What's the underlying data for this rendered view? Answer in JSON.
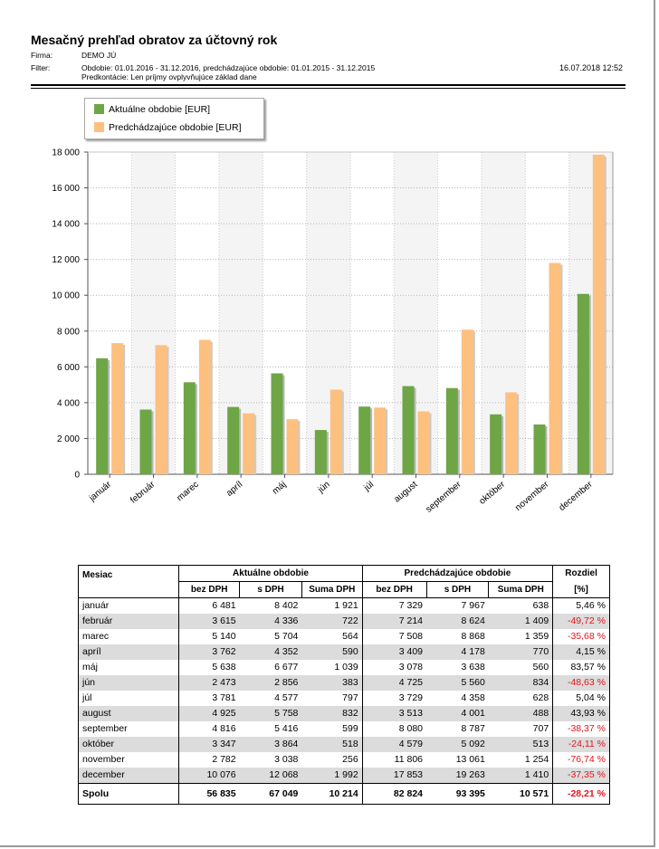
{
  "header": {
    "title": "Mesačný prehľad obratov za účtovný rok",
    "firma_label": "Firma:",
    "firma_value": "DEMO JÚ",
    "filter_label": "Filter:",
    "filter_line1": "Obdobie: 01.01.2016 - 31.12.2016, predchádzajúce obdobie: 01.01.2015 - 31.12.2015",
    "filter_line2": "Predkontácie:  Len príjmy ovplyvňujúce základ dane",
    "timestamp": "16.07.2018 12:52"
  },
  "legend": {
    "current": "Aktuálne obdobie [EUR]",
    "previous": "Predchádzajúce obdobie [EUR]"
  },
  "colors": {
    "current": "#6ea545",
    "previous": "#fdc07f",
    "negative": "#e8131b",
    "shade": "#dcdcdc"
  },
  "chart_data": {
    "type": "bar",
    "categories": [
      "január",
      "február",
      "marec",
      "apríl",
      "máj",
      "jún",
      "júl",
      "august",
      "september",
      "október",
      "november",
      "december"
    ],
    "series": [
      {
        "name": "Aktuálne obdobie [EUR]",
        "values": [
          6481,
          3615,
          5140,
          3762,
          5638,
          2473,
          3781,
          4925,
          4816,
          3347,
          2782,
          10076
        ]
      },
      {
        "name": "Predchádzajúce obdobie [EUR]",
        "values": [
          7329,
          7214,
          7508,
          3409,
          3078,
          4725,
          3729,
          3513,
          8080,
          4579,
          11806,
          17853
        ]
      }
    ],
    "yticks": [
      "0",
      "2 000",
      "4 000",
      "6 000",
      "8 000",
      "10 000",
      "12 000",
      "14 000",
      "16 000",
      "18 000"
    ],
    "ylim": [
      0,
      18000
    ],
    "grid": true,
    "legend_position": "top-left"
  },
  "table": {
    "head": {
      "month": "Mesiac",
      "current": "Aktuálne obdobie",
      "previous": "Predchádzajúce obdobie",
      "diff": "Rozdiel",
      "bez_dph": "bez DPH",
      "s_dph": "s DPH",
      "suma_dph": "Suma DPH",
      "pct": "[%]"
    },
    "rows": [
      {
        "month": "január",
        "c_bez": "6 481",
        "c_s": "8 402",
        "c_suma": "1 921",
        "p_bez": "7 329",
        "p_s": "7 967",
        "p_suma": "638",
        "diff": "5,46 %",
        "neg": false
      },
      {
        "month": "február",
        "c_bez": "3 615",
        "c_s": "4 336",
        "c_suma": "722",
        "p_bez": "7 214",
        "p_s": "8 624",
        "p_suma": "1 409",
        "diff": "-49,72 %",
        "neg": true
      },
      {
        "month": "marec",
        "c_bez": "5 140",
        "c_s": "5 704",
        "c_suma": "564",
        "p_bez": "7 508",
        "p_s": "8 868",
        "p_suma": "1 359",
        "diff": "-35,68 %",
        "neg": true
      },
      {
        "month": "apríl",
        "c_bez": "3 762",
        "c_s": "4 352",
        "c_suma": "590",
        "p_bez": "3 409",
        "p_s": "4 178",
        "p_suma": "770",
        "diff": "4,15 %",
        "neg": false
      },
      {
        "month": "máj",
        "c_bez": "5 638",
        "c_s": "6 677",
        "c_suma": "1 039",
        "p_bez": "3 078",
        "p_s": "3 638",
        "p_suma": "560",
        "diff": "83,57 %",
        "neg": false
      },
      {
        "month": "jún",
        "c_bez": "2 473",
        "c_s": "2 856",
        "c_suma": "383",
        "p_bez": "4 725",
        "p_s": "5 560",
        "p_suma": "834",
        "diff": "-48,63 %",
        "neg": true
      },
      {
        "month": "júl",
        "c_bez": "3 781",
        "c_s": "4 577",
        "c_suma": "797",
        "p_bez": "3 729",
        "p_s": "4 358",
        "p_suma": "628",
        "diff": "5,04 %",
        "neg": false
      },
      {
        "month": "august",
        "c_bez": "4 925",
        "c_s": "5 758",
        "c_suma": "832",
        "p_bez": "3 513",
        "p_s": "4 001",
        "p_suma": "488",
        "diff": "43,93 %",
        "neg": false
      },
      {
        "month": "september",
        "c_bez": "4 816",
        "c_s": "5 416",
        "c_suma": "599",
        "p_bez": "8 080",
        "p_s": "8 787",
        "p_suma": "707",
        "diff": "-38,37 %",
        "neg": true
      },
      {
        "month": "október",
        "c_bez": "3 347",
        "c_s": "3 864",
        "c_suma": "518",
        "p_bez": "4 579",
        "p_s": "5 092",
        "p_suma": "513",
        "diff": "-24,11 %",
        "neg": true
      },
      {
        "month": "november",
        "c_bez": "2 782",
        "c_s": "3 038",
        "c_suma": "256",
        "p_bez": "11 806",
        "p_s": "13 061",
        "p_suma": "1 254",
        "diff": "-76,74 %",
        "neg": true
      },
      {
        "month": "december",
        "c_bez": "10 076",
        "c_s": "12 068",
        "c_suma": "1 992",
        "p_bez": "17 853",
        "p_s": "19 263",
        "p_suma": "1 410",
        "diff": "-37,35 %",
        "neg": true
      }
    ],
    "total": {
      "month": "Spolu",
      "c_bez": "56 835",
      "c_s": "67 049",
      "c_suma": "10 214",
      "p_bez": "82 824",
      "p_s": "93 395",
      "p_suma": "10 571",
      "diff": "-28,21 %",
      "neg": true
    }
  }
}
